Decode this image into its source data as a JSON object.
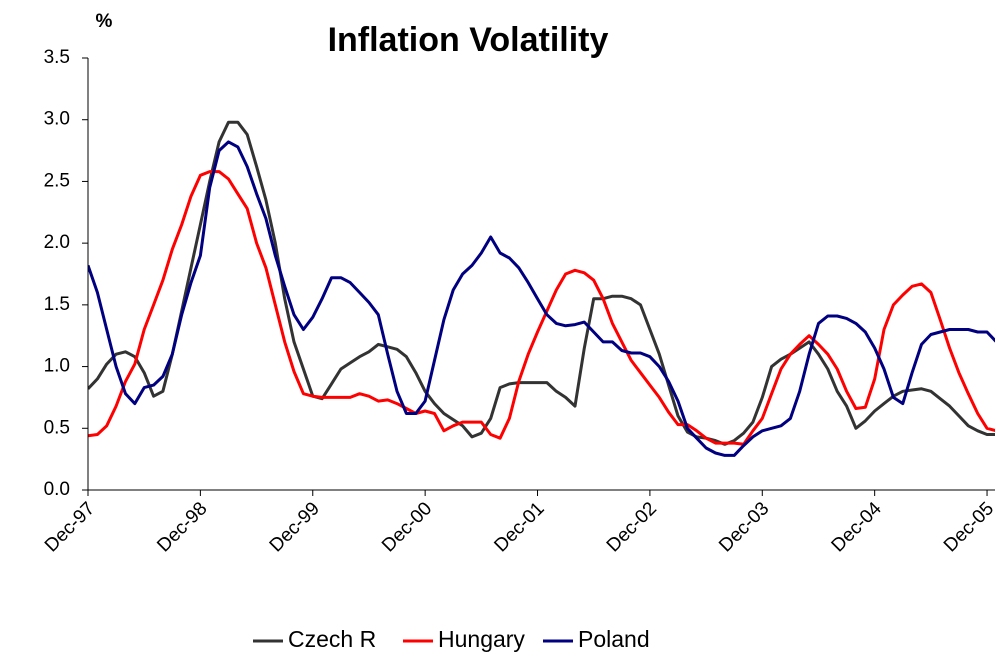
{
  "chart_data": {
    "type": "line",
    "title": "Inflation Volatility",
    "y_label": "%",
    "categories": [
      "Dec-97",
      null,
      null,
      null,
      null,
      null,
      null,
      null,
      null,
      null,
      null,
      null,
      "Dec-98",
      null,
      null,
      null,
      null,
      null,
      null,
      null,
      null,
      null,
      null,
      null,
      "Dec-99",
      null,
      null,
      null,
      null,
      null,
      null,
      null,
      null,
      null,
      null,
      null,
      "Dec-00",
      null,
      null,
      null,
      null,
      null,
      null,
      null,
      null,
      null,
      null,
      null,
      "Dec-01",
      null,
      null,
      null,
      null,
      null,
      null,
      null,
      null,
      null,
      null,
      null,
      "Dec-02",
      null,
      null,
      null,
      null,
      null,
      null,
      null,
      null,
      null,
      null,
      null,
      "Dec-03",
      null,
      null,
      null,
      null,
      null,
      null,
      null,
      null,
      null,
      null,
      null,
      "Dec-04",
      null,
      null,
      null,
      null,
      null,
      null,
      null,
      null,
      null,
      null,
      null,
      "Dec-05",
      null
    ],
    "series": [
      {
        "name": "Czech R",
        "color": "#333333",
        "values": [
          0.82,
          0.9,
          1.02,
          1.1,
          1.12,
          1.08,
          0.95,
          0.76,
          0.8,
          1.1,
          1.45,
          1.8,
          2.15,
          2.5,
          2.82,
          2.98,
          2.98,
          2.88,
          2.62,
          2.35,
          2.0,
          1.55,
          1.2,
          0.98,
          0.76,
          0.74,
          0.86,
          0.98,
          1.03,
          1.08,
          1.12,
          1.18,
          1.16,
          1.14,
          1.08,
          0.95,
          0.8,
          0.7,
          0.62,
          0.57,
          0.52,
          0.43,
          0.46,
          0.58,
          0.83,
          0.86,
          0.87,
          0.87,
          0.87,
          0.87,
          0.8,
          0.75,
          0.68,
          1.15,
          1.55,
          1.55,
          1.57,
          1.57,
          1.55,
          1.5,
          1.3,
          1.1,
          0.85,
          0.6,
          0.47,
          0.43,
          0.42,
          0.4,
          0.37,
          0.4,
          0.46,
          0.55,
          0.75,
          1.0,
          1.06,
          1.1,
          1.15,
          1.2,
          1.1,
          0.98,
          0.8,
          0.68,
          0.5,
          0.56,
          0.64,
          0.7,
          0.76,
          0.8,
          0.81,
          0.82,
          0.8,
          0.74,
          0.68,
          0.6,
          0.52,
          0.48,
          0.45,
          0.45
        ]
      },
      {
        "name": "Hungary",
        "color": "#ff0000",
        "values": [
          0.44,
          0.45,
          0.52,
          0.68,
          0.88,
          1.02,
          1.3,
          1.5,
          1.7,
          1.95,
          2.15,
          2.38,
          2.55,
          2.58,
          2.58,
          2.52,
          2.4,
          2.28,
          2.0,
          1.8,
          1.5,
          1.2,
          0.96,
          0.78,
          0.76,
          0.75,
          0.75,
          0.75,
          0.75,
          0.78,
          0.76,
          0.72,
          0.73,
          0.7,
          0.66,
          0.62,
          0.64,
          0.62,
          0.48,
          0.52,
          0.55,
          0.55,
          0.55,
          0.45,
          0.42,
          0.58,
          0.88,
          1.1,
          1.28,
          1.45,
          1.62,
          1.75,
          1.78,
          1.76,
          1.7,
          1.55,
          1.35,
          1.2,
          1.05,
          0.95,
          0.85,
          0.75,
          0.63,
          0.53,
          0.53,
          0.48,
          0.42,
          0.38,
          0.38,
          0.38,
          0.37,
          0.48,
          0.58,
          0.78,
          0.98,
          1.1,
          1.18,
          1.25,
          1.18,
          1.1,
          0.98,
          0.8,
          0.66,
          0.67,
          0.9,
          1.3,
          1.5,
          1.58,
          1.65,
          1.67,
          1.6,
          1.38,
          1.15,
          0.95,
          0.78,
          0.62,
          0.5,
          0.48
        ]
      },
      {
        "name": "Poland",
        "color": "#000080",
        "values": [
          1.82,
          1.6,
          1.3,
          1.0,
          0.78,
          0.7,
          0.83,
          0.85,
          0.92,
          1.1,
          1.42,
          1.68,
          1.9,
          2.45,
          2.75,
          2.82,
          2.78,
          2.62,
          2.4,
          2.2,
          1.9,
          1.65,
          1.42,
          1.3,
          1.4,
          1.55,
          1.72,
          1.72,
          1.68,
          1.6,
          1.52,
          1.42,
          1.1,
          0.8,
          0.62,
          0.62,
          0.72,
          1.05,
          1.38,
          1.62,
          1.75,
          1.82,
          1.92,
          2.05,
          1.92,
          1.88,
          1.8,
          1.68,
          1.55,
          1.42,
          1.35,
          1.33,
          1.34,
          1.36,
          1.28,
          1.2,
          1.2,
          1.13,
          1.11,
          1.11,
          1.08,
          1.0,
          0.88,
          0.72,
          0.5,
          0.42,
          0.34,
          0.3,
          0.28,
          0.28,
          0.36,
          0.43,
          0.48,
          0.5,
          0.52,
          0.58,
          0.8,
          1.1,
          1.35,
          1.41,
          1.41,
          1.39,
          1.35,
          1.28,
          1.15,
          0.98,
          0.75,
          0.7,
          0.95,
          1.18,
          1.26,
          1.28,
          1.3,
          1.3,
          1.3,
          1.28,
          1.28,
          1.2
        ]
      }
    ],
    "ylim": [
      0,
      3.5
    ],
    "yticks": [
      {
        "value": 0,
        "label": "0.0"
      },
      0.5,
      {
        "value": 1,
        "label": "1.0"
      },
      1.5,
      {
        "value": 2,
        "label": "2.0"
      },
      2.5,
      {
        "value": 3,
        "label": "3.0"
      },
      3.5
    ],
    "grid": false,
    "legend": "bottom"
  }
}
